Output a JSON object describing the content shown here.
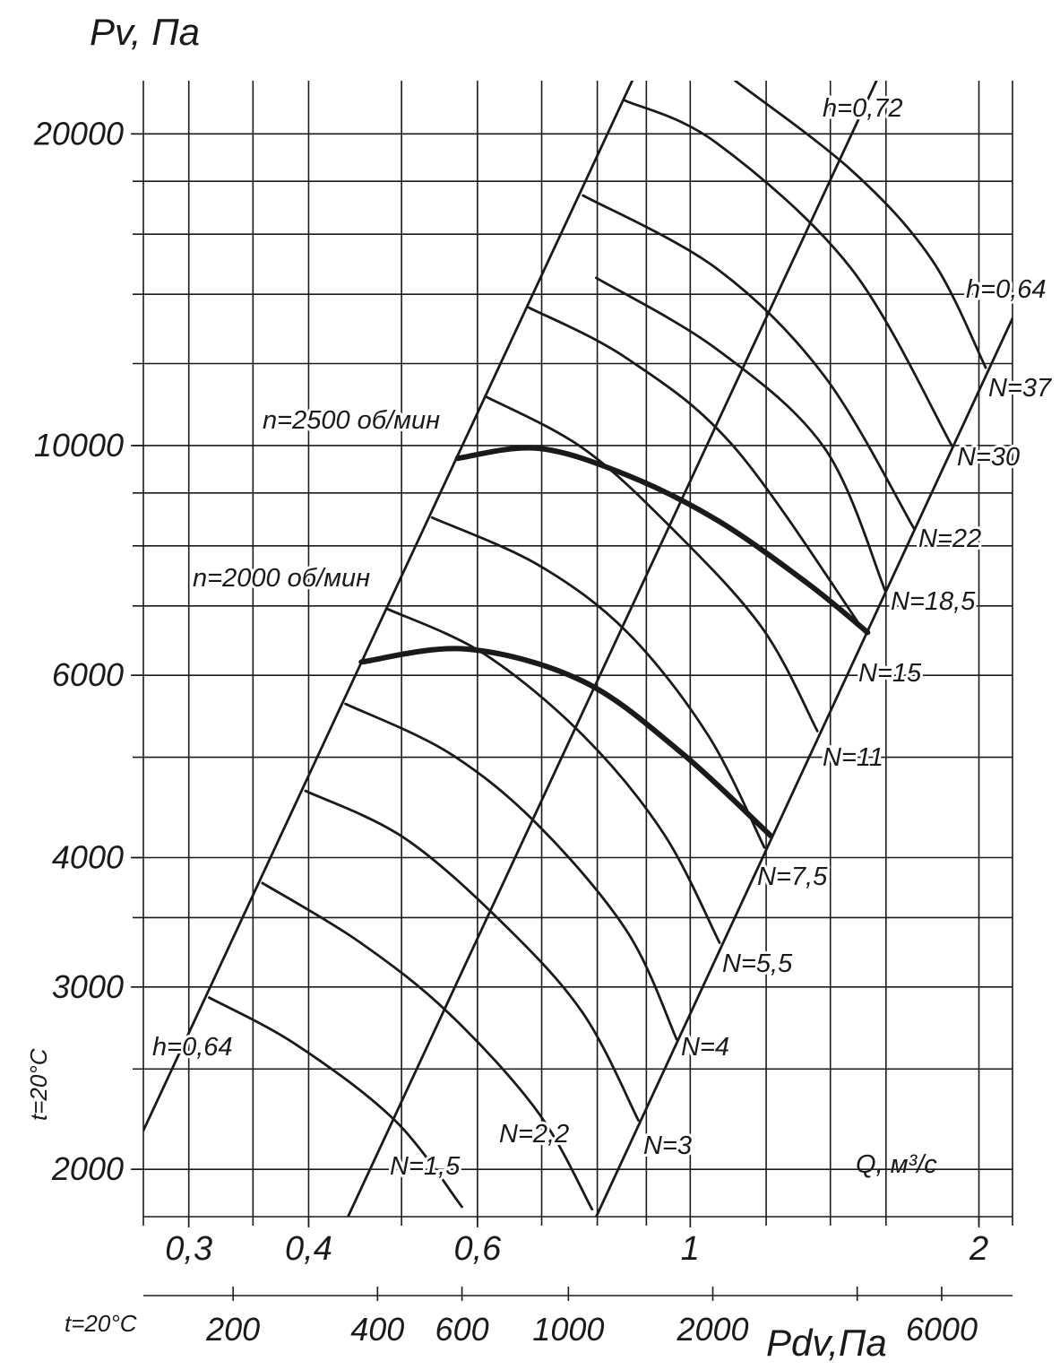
{
  "chart_data": {
    "type": "line",
    "y_label": "Pv, Па",
    "x_label": "Q, м³/с",
    "x2_label": "Pdv,Па",
    "y_note": "t=20°C",
    "x2_note": "t=20°C",
    "log_x": true,
    "log_y": true,
    "grid": true,
    "color": "#1a1a1a",
    "xlim": [
      0.269,
      2.168
    ],
    "xticks": [
      {
        "value": 0.3,
        "label": "0,3"
      },
      {
        "value": 0.4,
        "label": "0,4"
      },
      {
        "value": 0.6,
        "label": "0,6"
      },
      1,
      2
    ],
    "xgrid": [
      0.3,
      0.35,
      0.4,
      0.5,
      0.6,
      0.7,
      0.8,
      0.9,
      1,
      1.2,
      1.4,
      1.6,
      2
    ],
    "ylim": [
      1800,
      22510
    ],
    "yticks": [
      2000,
      3000,
      4000,
      6000,
      10000,
      20000
    ],
    "ygrid": [
      2000,
      2500,
      3000,
      3500,
      4000,
      5000,
      6000,
      7000,
      8000,
      9000,
      10000,
      12000,
      14000,
      16000,
      18000,
      20000
    ],
    "x2lim": [
      130,
      8430
    ],
    "x2ticks": [
      200,
      400,
      600,
      1000,
      2000,
      6000
    ],
    "x2minor": [
      4000
    ],
    "series": [
      {
        "name": "N=1,5",
        "x": [
          0.315,
          0.388,
          0.492,
          0.578
        ],
        "values": [
          2930,
          2640,
          2230,
          1840
        ]
      },
      {
        "name": "N=2,2",
        "x": [
          0.358,
          0.451,
          0.56,
          0.694,
          0.79
        ],
        "values": [
          3780,
          3320,
          2830,
          2270,
          1830
        ]
      },
      {
        "name": "N=3",
        "x": [
          0.397,
          0.503,
          0.637,
          0.773,
          0.883
        ],
        "values": [
          4640,
          4180,
          3460,
          2830,
          2230
        ]
      },
      {
        "name": "N=4",
        "x": [
          0.437,
          0.56,
          0.694,
          0.86,
          0.968
        ],
        "values": [
          5630,
          5050,
          4300,
          3390,
          2670
        ]
      },
      {
        "name": "N=5,5",
        "x": [
          0.484,
          0.61,
          0.773,
          0.938,
          1.073
        ],
        "values": [
          6950,
          6290,
          5250,
          4220,
          3310
        ]
      },
      {
        "name": "N=7,5",
        "x": [
          0.538,
          0.694,
          0.86,
          1.044,
          1.195
        ],
        "values": [
          8520,
          7670,
          6600,
          5250,
          4090
        ]
      },
      {
        "name": "N=11",
        "x": [
          0.611,
          0.773,
          0.958,
          1.188,
          1.357
        ],
        "values": [
          11160,
          9940,
          8310,
          6670,
          5300
        ]
      },
      {
        "name": "N=15",
        "x": [
          0.679,
          0.86,
          1.114,
          1.521
        ],
        "values": [
          13590,
          12130,
          9940,
          6600
        ]
      },
      {
        "name": "N=18,5",
        "x": [
          0.798,
          1.067,
          1.381,
          1.598
        ],
        "values": [
          14520,
          12380,
          9940,
          7230
        ]
      },
      {
        "name": "N=22",
        "x": [
          0.773,
          1.067,
          1.381,
          1.712
        ],
        "values": [
          17440,
          14810,
          11660,
          8310
        ]
      },
      {
        "name": "N=30",
        "x": [
          0.855,
          1.067,
          1.473,
          1.874
        ],
        "values": [
          21540,
          19580,
          14810,
          10000
        ]
      },
      {
        "name": "N=37",
        "x": [
          1.114,
          1.473,
          1.787,
          2.033
        ],
        "values": [
          22510,
          18440,
          15110,
          11890
        ]
      },
      {
        "name": "n=2500 об/мин",
        "bold": true,
        "x": [
          0.572,
          0.694,
          0.86,
          1.067,
          1.323,
          1.531
        ],
        "values": [
          9720,
          9940,
          9360,
          8470,
          7370,
          6600
        ]
      },
      {
        "name": "n=2000 об/мин",
        "bold": true,
        "x": [
          0.454,
          0.584,
          0.773,
          0.979,
          1.213
        ],
        "values": [
          6180,
          6360,
          5920,
          5050,
          4200
        ]
      },
      {
        "name": "h=0,64",
        "x": [
          0.269,
          0.87
        ],
        "values": [
          2180,
          22510
        ]
      },
      {
        "name": "h=0,72",
        "x": [
          0.4397,
          1.564
        ],
        "values": [
          1800,
          22510
        ]
      },
      {
        "name": "h=0,64",
        "x": [
          0.798,
          2.168
        ],
        "values": [
          1800,
          13270
        ]
      }
    ]
  }
}
